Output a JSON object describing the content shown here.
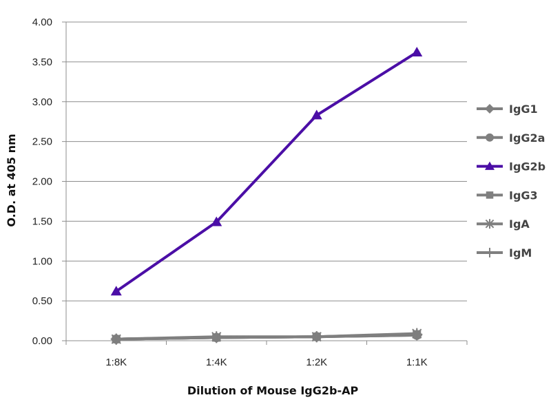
{
  "chart_data": {
    "type": "line",
    "title": "",
    "xlabel": "Dilution of Mouse IgG2b-AP",
    "ylabel": "O.D. at 405 nm",
    "categories": [
      "1:8K",
      "1:4K",
      "1:2K",
      "1:1K"
    ],
    "ylim": [
      0,
      4
    ],
    "yticks": [
      "0.00",
      "0.50",
      "1.00",
      "1.50",
      "2.00",
      "2.50",
      "3.00",
      "3.50",
      "4.00"
    ],
    "grid": "horizontal",
    "legend_position": "right",
    "series": [
      {
        "name": "IgG1",
        "marker": "diamond",
        "color": "#7f7f7f",
        "values": [
          0.02,
          0.04,
          0.05,
          0.07
        ]
      },
      {
        "name": "IgG2a",
        "marker": "circle",
        "color": "#7f7f7f",
        "values": [
          0.02,
          0.04,
          0.05,
          0.07
        ]
      },
      {
        "name": "IgG2b",
        "marker": "triangle",
        "color": "#4b0ea6",
        "values": [
          0.62,
          1.49,
          2.83,
          3.62
        ]
      },
      {
        "name": "IgG3",
        "marker": "square",
        "color": "#7f7f7f",
        "values": [
          0.02,
          0.04,
          0.05,
          0.08
        ]
      },
      {
        "name": "IgA",
        "marker": "star",
        "color": "#7f7f7f",
        "values": [
          0.02,
          0.05,
          0.05,
          0.09
        ]
      },
      {
        "name": "IgM",
        "marker": "plus",
        "color": "#7f7f7f",
        "values": [
          0.02,
          0.04,
          0.05,
          0.08
        ]
      }
    ]
  }
}
